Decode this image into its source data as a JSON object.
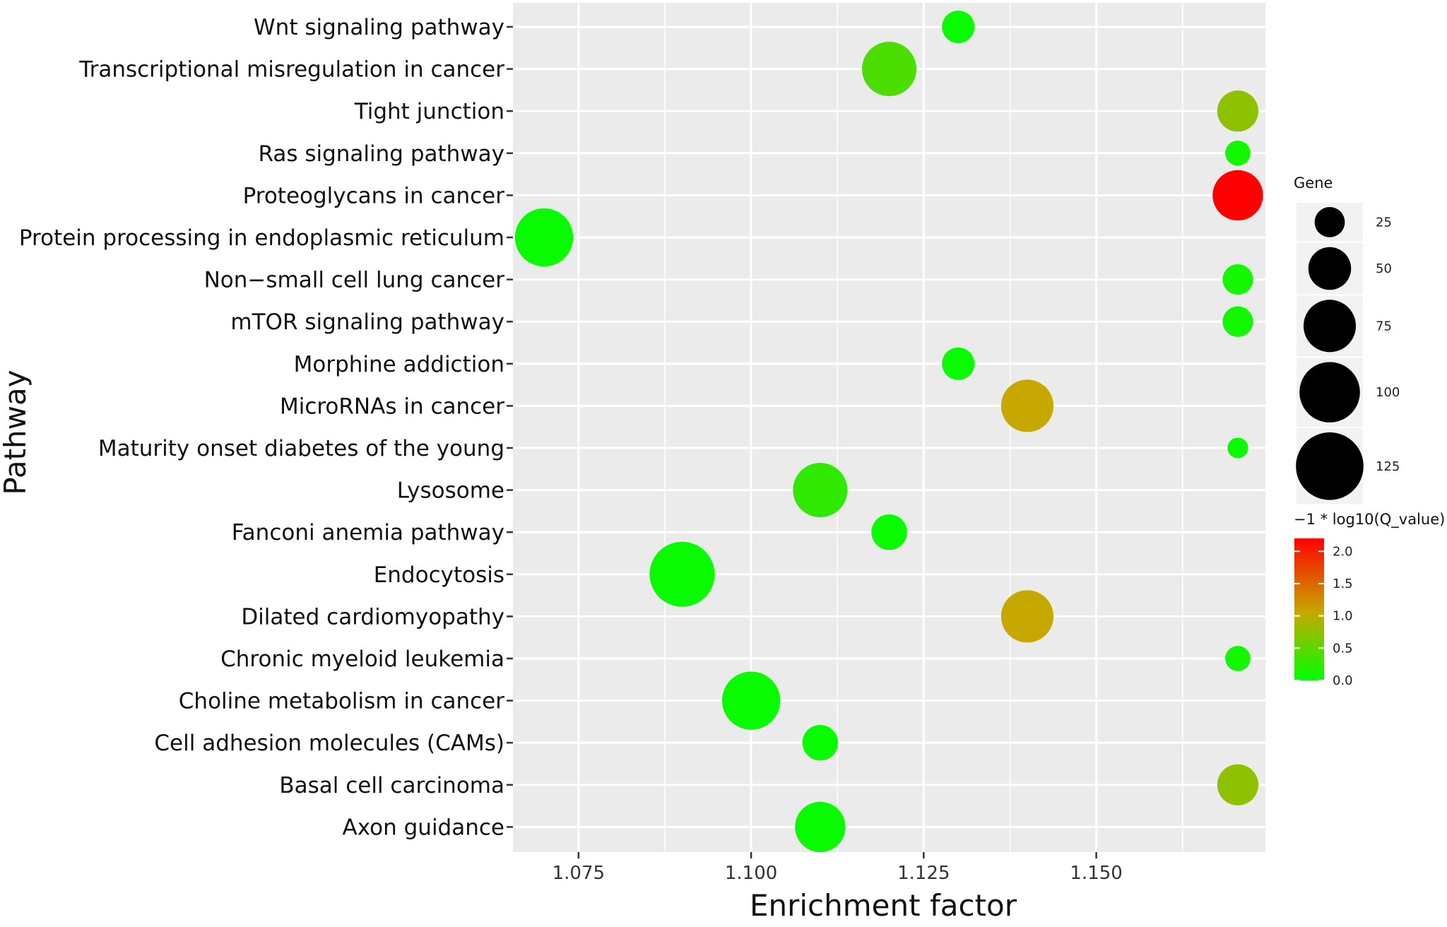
{
  "chart_data": {
    "type": "scatter",
    "subtype": "bubble",
    "xlabel": "Enrichment  factor",
    "ylabel": "Pathway",
    "xlim": [
      1.0655,
      1.1745
    ],
    "xticks": [
      "1.075",
      "1.100",
      "1.125",
      "1.150"
    ],
    "xtick_values": [
      1.075,
      1.1,
      1.125,
      1.15
    ],
    "grid": true,
    "points": [
      {
        "pathway": "Wnt signaling pathway",
        "x": 1.13,
        "gene": 25,
        "q": 0.05
      },
      {
        "pathway": "Transcriptional misregulation in cancer",
        "x": 1.12,
        "gene": 70,
        "q": 0.4
      },
      {
        "pathway": "Tight junction",
        "x": 1.1705,
        "gene": 40,
        "q": 0.75
      },
      {
        "pathway": "Ras signaling pathway",
        "x": 1.1705,
        "gene": 15,
        "q": 0.1
      },
      {
        "pathway": "Proteoglycans in cancer",
        "x": 1.1705,
        "gene": 60,
        "q": 2.2
      },
      {
        "pathway": "Protein processing in endoplasmic reticulum",
        "x": 1.07,
        "gene": 80,
        "q": 0.05
      },
      {
        "pathway": "Non−small cell lung cancer",
        "x": 1.1705,
        "gene": 22,
        "q": 0.1
      },
      {
        "pathway": "mTOR signaling pathway",
        "x": 1.1705,
        "gene": 22,
        "q": 0.1
      },
      {
        "pathway": "Morphine addiction",
        "x": 1.13,
        "gene": 25,
        "q": 0.05
      },
      {
        "pathway": "MicroRNAs in cancer",
        "x": 1.14,
        "gene": 65,
        "q": 1.05
      },
      {
        "pathway": "Maturity onset diabetes of the young",
        "x": 1.1705,
        "gene": 10,
        "q": 0.05
      },
      {
        "pathway": "Lysosome",
        "x": 1.11,
        "gene": 70,
        "q": 0.25
      },
      {
        "pathway": "Fanconi anemia pathway",
        "x": 1.12,
        "gene": 30,
        "q": 0.05
      },
      {
        "pathway": "Endocytosis",
        "x": 1.09,
        "gene": 100,
        "q": 0.05
      },
      {
        "pathway": "Dilated cardiomyopathy",
        "x": 1.14,
        "gene": 65,
        "q": 1.05
      },
      {
        "pathway": "Chronic myeloid leukemia",
        "x": 1.1705,
        "gene": 15,
        "q": 0.1
      },
      {
        "pathway": "Choline metabolism in cancer",
        "x": 1.1,
        "gene": 80,
        "q": 0.05
      },
      {
        "pathway": "Cell adhesion molecules (CAMs)",
        "x": 1.11,
        "gene": 30,
        "q": 0.05
      },
      {
        "pathway": "Basal cell carcinoma",
        "x": 1.1705,
        "gene": 40,
        "q": 0.75
      },
      {
        "pathway": "Axon guidance",
        "x": 1.11,
        "gene": 60,
        "q": 0.05
      }
    ],
    "legend_size": {
      "title": "Gene",
      "entries": [
        {
          "label": "25",
          "value": 25
        },
        {
          "label": "50",
          "value": 50
        },
        {
          "label": "75",
          "value": 75
        },
        {
          "label": "100",
          "value": 100
        },
        {
          "label": "125",
          "value": 125
        }
      ]
    },
    "legend_color": {
      "title": "−1 * log10(Q_value)",
      "range": [
        0,
        2.2
      ],
      "ticks": [
        {
          "label": "0.0",
          "value": 0.0
        },
        {
          "label": "0.5",
          "value": 0.5
        },
        {
          "label": "1.0",
          "value": 1.0
        },
        {
          "label": "1.5",
          "value": 1.5
        },
        {
          "label": "2.0",
          "value": 2.0
        }
      ],
      "low_color": "#00ff00",
      "mid_color": "#c8a800",
      "high_color": "#ff0000"
    },
    "colors": {
      "panel_bg": "#ebebeb",
      "grid": "#ffffff",
      "legend_key_bg": "#f2f2f2",
      "size_marker": "#000000"
    }
  }
}
